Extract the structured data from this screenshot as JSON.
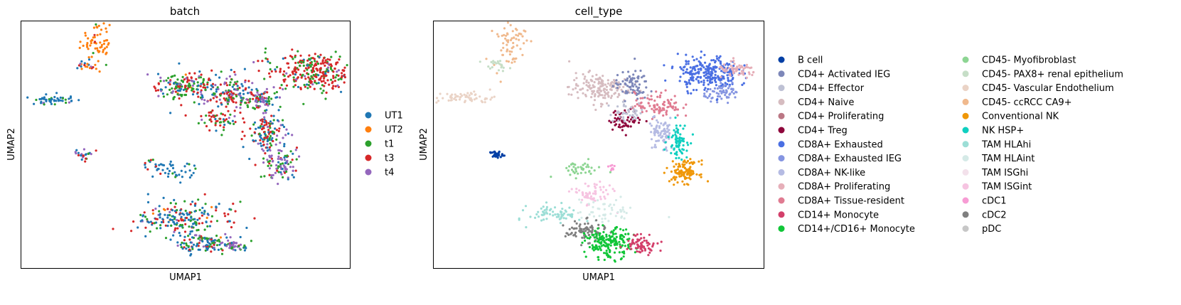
{
  "chart_data": [
    {
      "type": "scatter",
      "title": "batch",
      "xlabel": "UMAP1",
      "ylabel": "UMAP2",
      "xlim": [
        0,
        10
      ],
      "ylim": [
        0,
        10
      ],
      "grid": false,
      "legend_placement": "right",
      "series": [
        {
          "name": "UT1",
          "color": "#1f77b4"
        },
        {
          "name": "UT2",
          "color": "#ff7f0e"
        },
        {
          "name": "t1",
          "color": "#2ca02c"
        },
        {
          "name": "t3",
          "color": "#d62728"
        },
        {
          "name": "t4",
          "color": "#9467bd"
        }
      ],
      "clusters": [
        {
          "x": 2.3,
          "y": 9.2,
          "sx": 0.25,
          "sy": 0.55,
          "n": 70,
          "mix": [
            0,
            0.9,
            0.05,
            0.05,
            0
          ]
        },
        {
          "x": 1.9,
          "y": 8.2,
          "sx": 0.15,
          "sy": 0.12,
          "n": 18,
          "mix": [
            0.3,
            0.2,
            0.1,
            0.3,
            0.1
          ]
        },
        {
          "x": 1.0,
          "y": 6.8,
          "sx": 0.35,
          "sy": 0.1,
          "n": 50,
          "mix": [
            0.8,
            0,
            0.15,
            0,
            0.05
          ]
        },
        {
          "x": 1.9,
          "y": 4.6,
          "sx": 0.1,
          "sy": 0.08,
          "n": 25,
          "mix": [
            0.3,
            0,
            0.1,
            0.3,
            0.3
          ]
        },
        {
          "x": 5.0,
          "y": 7.3,
          "sx": 0.45,
          "sy": 0.3,
          "n": 170,
          "mix": [
            0.2,
            0.05,
            0.35,
            0.25,
            0.15
          ]
        },
        {
          "x": 6.3,
          "y": 7.0,
          "sx": 0.35,
          "sy": 0.4,
          "n": 130,
          "mix": [
            0.25,
            0,
            0.25,
            0.3,
            0.2
          ]
        },
        {
          "x": 7.3,
          "y": 6.8,
          "sx": 0.3,
          "sy": 0.25,
          "n": 90,
          "mix": [
            0.2,
            0,
            0.3,
            0.3,
            0.2
          ]
        },
        {
          "x": 8.9,
          "y": 7.9,
          "sx": 0.7,
          "sy": 0.4,
          "n": 300,
          "mix": [
            0.05,
            0,
            0.25,
            0.65,
            0.05
          ]
        },
        {
          "x": 6.0,
          "y": 6.0,
          "sx": 0.3,
          "sy": 0.2,
          "n": 50,
          "mix": [
            0.05,
            0,
            0.35,
            0.55,
            0.05
          ]
        },
        {
          "x": 7.5,
          "y": 5.5,
          "sx": 0.3,
          "sy": 0.45,
          "n": 130,
          "mix": [
            0.35,
            0,
            0.15,
            0.35,
            0.15
          ]
        },
        {
          "x": 7.9,
          "y": 4.2,
          "sx": 0.25,
          "sy": 0.35,
          "n": 90,
          "mix": [
            0.1,
            0,
            0.2,
            0.1,
            0.6
          ]
        },
        {
          "x": 4.6,
          "y": 4.0,
          "sx": 0.45,
          "sy": 0.2,
          "n": 50,
          "mix": [
            0.8,
            0,
            0.1,
            0.05,
            0.05
          ]
        },
        {
          "x": 4.9,
          "y": 2.0,
          "sx": 0.7,
          "sy": 0.35,
          "n": 200,
          "mix": [
            0.4,
            0.05,
            0.25,
            0.25,
            0.05
          ]
        },
        {
          "x": 5.6,
          "y": 1.0,
          "sx": 0.45,
          "sy": 0.22,
          "n": 120,
          "mix": [
            0.45,
            0,
            0.25,
            0.15,
            0.15
          ]
        },
        {
          "x": 6.5,
          "y": 0.9,
          "sx": 0.2,
          "sy": 0.12,
          "n": 40,
          "mix": [
            0.15,
            0,
            0.1,
            0.05,
            0.7
          ]
        }
      ]
    },
    {
      "type": "scatter",
      "title": "cell_type",
      "xlabel": "UMAP1",
      "ylabel": "UMAP2",
      "xlim": [
        0,
        10
      ],
      "ylim": [
        0,
        10
      ],
      "grid": false,
      "legend_placement": "right",
      "series": [
        {
          "name": "B cell",
          "color": "#023fa5"
        },
        {
          "name": "CD4+ Activated IEG",
          "color": "#7d87b9"
        },
        {
          "name": "CD4+ Effector",
          "color": "#bec1d4"
        },
        {
          "name": "CD4+ Naive",
          "color": "#d6bcc0"
        },
        {
          "name": "CD4+ Proliferating",
          "color": "#bb7784"
        },
        {
          "name": "CD4+ Treg",
          "color": "#8e063b"
        },
        {
          "name": "CD8A+ Exhausted",
          "color": "#4a6fe3"
        },
        {
          "name": "CD8A+ Exhausted IEG",
          "color": "#8595e1"
        },
        {
          "name": "CD8A+ NK-like",
          "color": "#b5bbe3"
        },
        {
          "name": "CD8A+ Proliferating",
          "color": "#e6afb9"
        },
        {
          "name": "CD8A+ Tissue-resident",
          "color": "#e07b91"
        },
        {
          "name": "CD14+ Monocyte",
          "color": "#d33f6a"
        },
        {
          "name": "CD14+/CD16+ Monocyte",
          "color": "#11c638"
        },
        {
          "name": "CD45- Myofibroblast",
          "color": "#8dd593"
        },
        {
          "name": "CD45- PAX8+ renal epithelium",
          "color": "#c6dec7"
        },
        {
          "name": "CD45- Vascular Endothelium",
          "color": "#ead3c6"
        },
        {
          "name": "CD45- ccRCC CA9+",
          "color": "#f0b98d"
        },
        {
          "name": "Conventional NK",
          "color": "#ef9708"
        },
        {
          "name": "NK HSP+",
          "color": "#0fcfc0"
        },
        {
          "name": "TAM HLAhi",
          "color": "#9cded6"
        },
        {
          "name": "TAM HLAint",
          "color": "#d5eae7"
        },
        {
          "name": "TAM ISGhi",
          "color": "#f3e1eb"
        },
        {
          "name": "TAM ISGint",
          "color": "#f6c4e1"
        },
        {
          "name": "cDC1",
          "color": "#f79cd4"
        },
        {
          "name": "cDC2",
          "color": "#7f7f7f"
        },
        {
          "name": "pDC",
          "color": "#c7c7c7"
        }
      ],
      "clusters": [
        {
          "x": 2.3,
          "y": 9.2,
          "sx": 0.25,
          "sy": 0.55,
          "n": 70,
          "c": 16
        },
        {
          "x": 1.9,
          "y": 8.2,
          "sx": 0.2,
          "sy": 0.1,
          "n": 20,
          "c": 14
        },
        {
          "x": 1.0,
          "y": 6.9,
          "sx": 0.45,
          "sy": 0.12,
          "n": 60,
          "c": 15
        },
        {
          "x": 1.9,
          "y": 4.6,
          "sx": 0.1,
          "sy": 0.07,
          "n": 30,
          "c": 0
        },
        {
          "x": 5.0,
          "y": 7.3,
          "sx": 0.45,
          "sy": 0.3,
          "n": 160,
          "c": 3
        },
        {
          "x": 6.0,
          "y": 7.4,
          "sx": 0.25,
          "sy": 0.3,
          "n": 80,
          "c": 1
        },
        {
          "x": 6.8,
          "y": 6.6,
          "sx": 0.35,
          "sy": 0.25,
          "n": 90,
          "c": 10
        },
        {
          "x": 5.8,
          "y": 6.0,
          "sx": 0.25,
          "sy": 0.2,
          "n": 60,
          "c": 5
        },
        {
          "x": 5.9,
          "y": 6.3,
          "sx": 0.3,
          "sy": 0.2,
          "n": 40,
          "c": 2
        },
        {
          "x": 8.3,
          "y": 7.9,
          "sx": 0.45,
          "sy": 0.35,
          "n": 250,
          "c": 6
        },
        {
          "x": 8.8,
          "y": 7.1,
          "sx": 0.3,
          "sy": 0.15,
          "n": 60,
          "c": 7
        },
        {
          "x": 9.2,
          "y": 8.0,
          "sx": 0.3,
          "sy": 0.15,
          "n": 60,
          "c": 9
        },
        {
          "x": 6.9,
          "y": 5.4,
          "sx": 0.2,
          "sy": 0.35,
          "n": 80,
          "c": 8
        },
        {
          "x": 7.4,
          "y": 5.2,
          "sx": 0.15,
          "sy": 0.35,
          "n": 70,
          "c": 18
        },
        {
          "x": 7.6,
          "y": 3.9,
          "sx": 0.22,
          "sy": 0.22,
          "n": 110,
          "c": 17
        },
        {
          "x": 4.4,
          "y": 4.0,
          "sx": 0.35,
          "sy": 0.15,
          "n": 40,
          "c": 13
        },
        {
          "x": 4.8,
          "y": 3.0,
          "sx": 0.3,
          "sy": 0.25,
          "n": 60,
          "c": 22
        },
        {
          "x": 5.2,
          "y": 2.3,
          "sx": 0.45,
          "sy": 0.25,
          "n": 50,
          "c": 20
        },
        {
          "x": 3.7,
          "y": 2.2,
          "sx": 0.4,
          "sy": 0.2,
          "n": 70,
          "c": 19
        },
        {
          "x": 4.6,
          "y": 1.5,
          "sx": 0.3,
          "sy": 0.2,
          "n": 80,
          "c": 24
        },
        {
          "x": 5.3,
          "y": 1.0,
          "sx": 0.35,
          "sy": 0.3,
          "n": 180,
          "c": 12
        },
        {
          "x": 6.3,
          "y": 1.0,
          "sx": 0.25,
          "sy": 0.2,
          "n": 70,
          "c": 11
        },
        {
          "x": 5.4,
          "y": 4.0,
          "sx": 0.05,
          "sy": 0.1,
          "n": 8,
          "c": 23
        }
      ]
    }
  ]
}
